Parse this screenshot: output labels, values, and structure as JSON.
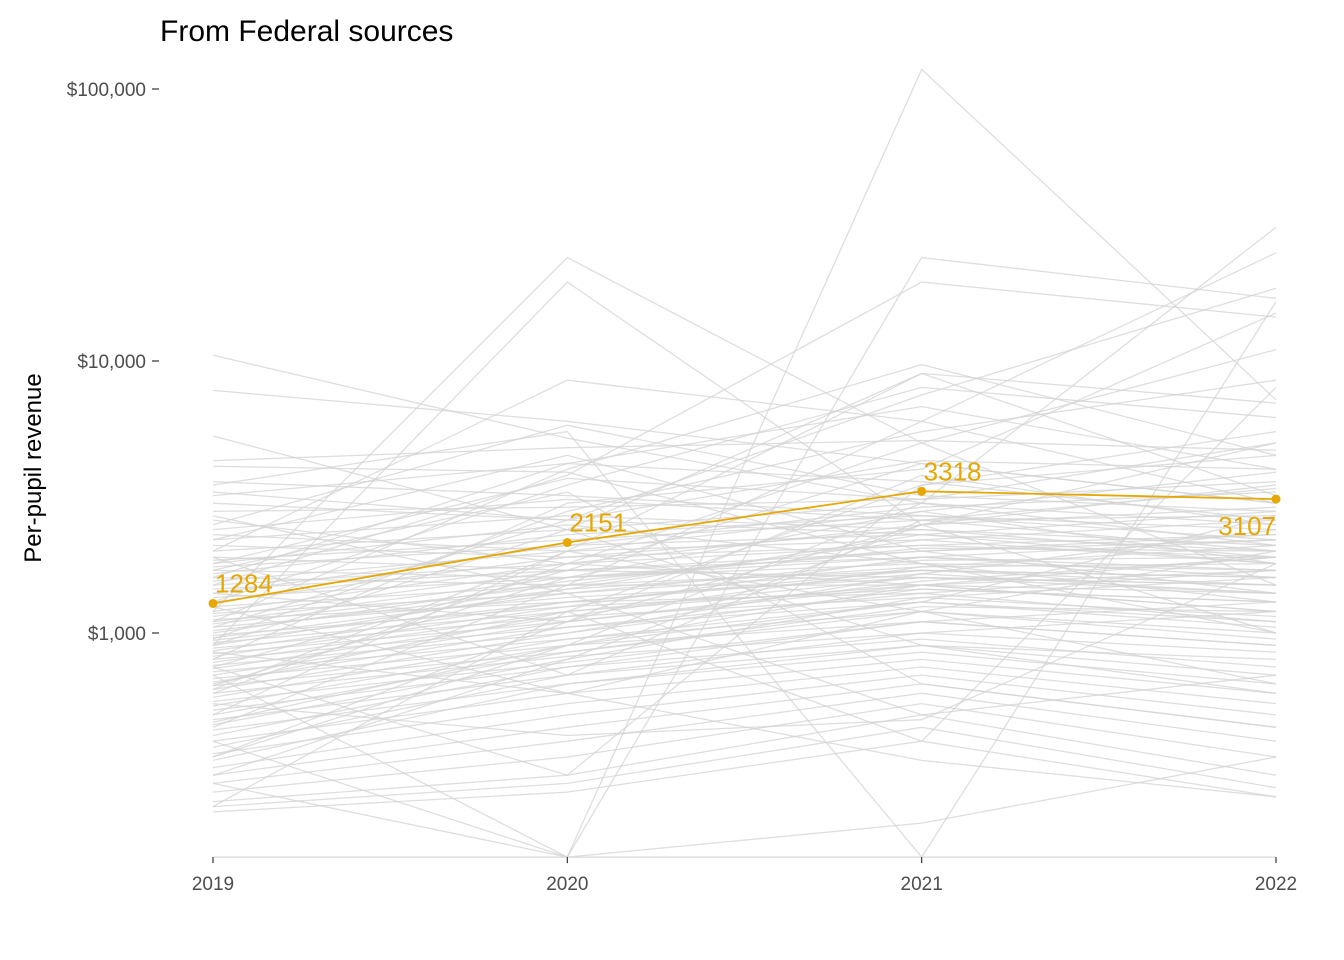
{
  "chart_data": {
    "type": "line",
    "title": "From Federal sources",
    "xlabel": "",
    "ylabel": "Per-pupil revenue",
    "x": [
      "2019",
      "2020",
      "2021",
      "2022"
    ],
    "y_scale": "log10",
    "ylim": [
      150,
      120000
    ],
    "y_ticks": [
      {
        "value": 1000,
        "label": "$1,000"
      },
      {
        "value": 10000,
        "label": "$10,000"
      },
      {
        "value": 100000,
        "label": "$100,000"
      }
    ],
    "grid": false,
    "legend": "none",
    "highlight_color": "#E6A800",
    "background_color": "#D3D3D3",
    "highlight": {
      "values": [
        1284,
        2151,
        3318,
        3107
      ],
      "labels": [
        "1284",
        "2151",
        "3318",
        "3107"
      ]
    },
    "background_series": [
      [
        10500,
        5200,
        3000,
        2100
      ],
      [
        7800,
        6000,
        4200,
        3000
      ],
      [
        5300,
        2400,
        9000,
        3200
      ],
      [
        4300,
        4800,
        5100,
        4700
      ],
      [
        3600,
        3200,
        2700,
        2200
      ],
      [
        3200,
        4200,
        3600,
        2600
      ],
      [
        3000,
        2600,
        2300,
        1800
      ],
      [
        2800,
        2900,
        3100,
        3600
      ],
      [
        2600,
        1800,
        1500,
        1200
      ],
      [
        2400,
        3100,
        2600,
        2000
      ],
      [
        2300,
        2000,
        2800,
        3900
      ],
      [
        2200,
        2700,
        2400,
        1900
      ],
      [
        2100,
        1900,
        2100,
        2300
      ],
      [
        2000,
        2400,
        3000,
        2500
      ],
      [
        1900,
        1700,
        1900,
        1600
      ],
      [
        1850,
        2200,
        2600,
        2700
      ],
      [
        1800,
        2500,
        1800,
        1300
      ],
      [
        1750,
        2100,
        2300,
        2000
      ],
      [
        1700,
        1600,
        2000,
        2200
      ],
      [
        1650,
        2300,
        2700,
        2400
      ],
      [
        1600,
        1500,
        1700,
        1500
      ],
      [
        1550,
        2000,
        2200,
        1800
      ],
      [
        1500,
        1800,
        2500,
        2900
      ],
      [
        1450,
        1700,
        1600,
        1400
      ],
      [
        1400,
        2100,
        2900,
        3300
      ],
      [
        1350,
        1600,
        1800,
        1700
      ],
      [
        1300,
        1900,
        2400,
        2100
      ],
      [
        1250,
        1500,
        1500,
        1200
      ],
      [
        1200,
        1800,
        2100,
        1900
      ],
      [
        1180,
        1400,
        1700,
        1600
      ],
      [
        1150,
        1700,
        2000,
        2300
      ],
      [
        1120,
        1300,
        1400,
        1100
      ],
      [
        1100,
        1600,
        1900,
        1700
      ],
      [
        1080,
        1500,
        2200,
        2600
      ],
      [
        1050,
        1350,
        1600,
        1500
      ],
      [
        1020,
        1450,
        1750,
        1800
      ],
      [
        1000,
        1550,
        2050,
        2000
      ],
      [
        980,
        1250,
        1450,
        1300
      ],
      [
        960,
        1400,
        1850,
        1900
      ],
      [
        940,
        1300,
        1650,
        1400
      ],
      [
        920,
        1200,
        1500,
        1700
      ],
      [
        900,
        1450,
        2300,
        2800
      ],
      [
        880,
        1150,
        1350,
        1150
      ],
      [
        860,
        1300,
        1700,
        1600
      ],
      [
        840,
        1100,
        1550,
        1900
      ],
      [
        820,
        1250,
        1900,
        2200
      ],
      [
        800,
        1050,
        1300,
        1050
      ],
      [
        780,
        1200,
        1600,
        1500
      ],
      [
        760,
        1000,
        1450,
        1300
      ],
      [
        740,
        1150,
        1750,
        2100
      ],
      [
        720,
        950,
        1200,
        950
      ],
      [
        700,
        1100,
        1500,
        1400
      ],
      [
        680,
        900,
        1100,
        900
      ],
      [
        660,
        1050,
        1400,
        1700
      ],
      [
        640,
        850,
        1250,
        1200
      ],
      [
        620,
        1000,
        1650,
        2400
      ],
      [
        600,
        820,
        1000,
        850
      ],
      [
        580,
        950,
        1300,
        1100
      ],
      [
        560,
        780,
        1100,
        1300
      ],
      [
        540,
        900,
        1500,
        1900
      ],
      [
        520,
        750,
        950,
        750
      ],
      [
        500,
        850,
        1200,
        1000
      ],
      [
        480,
        700,
        900,
        700
      ],
      [
        460,
        800,
        1350,
        1600
      ],
      [
        440,
        650,
        850,
        650
      ],
      [
        420,
        750,
        1100,
        900
      ],
      [
        400,
        600,
        800,
        600
      ],
      [
        380,
        700,
        1000,
        1200
      ],
      [
        360,
        550,
        750,
        550
      ],
      [
        340,
        650,
        900,
        800
      ],
      [
        320,
        500,
        700,
        500
      ],
      [
        300,
        450,
        650,
        450
      ],
      [
        280,
        400,
        600,
        400
      ],
      [
        260,
        350,
        550,
        350
      ],
      [
        240,
        300,
        500,
        300
      ],
      [
        230,
        280,
        450,
        270
      ],
      [
        220,
        260,
        400,
        250
      ],
      [
        300,
        800,
        2500,
        5000
      ],
      [
        500,
        2000,
        9000,
        7000
      ],
      [
        800,
        3000,
        4000,
        15000
      ],
      [
        450,
        1500,
        6000,
        25000
      ],
      [
        350,
        900,
        3000,
        31000
      ],
      [
        600,
        1800,
        5000,
        11000
      ],
      [
        1200,
        24000,
        5000,
        1500
      ],
      [
        900,
        19500,
        2500,
        1000
      ],
      [
        700,
        150,
        24000,
        17000
      ],
      [
        1500,
        3800,
        19500,
        14500
      ],
      [
        1100,
        4000,
        9700,
        4500
      ],
      [
        2000,
        8500,
        6000,
        3000
      ],
      [
        400,
        150,
        118000,
        7200
      ],
      [
        3500,
        5500,
        150,
        16500
      ],
      [
        1300,
        3500,
        8000,
        6200
      ],
      [
        950,
        2800,
        5500,
        8500
      ],
      [
        650,
        1200,
        3500,
        5500
      ],
      [
        280,
        150,
        200,
        350
      ],
      [
        230,
        1200,
        400,
        8000
      ],
      [
        1600,
        4200,
        6800,
        4000
      ],
      [
        2500,
        5800,
        3200,
        2800
      ],
      [
        850,
        600,
        340,
        250
      ],
      [
        750,
        300,
        3500,
        4500
      ],
      [
        550,
        420,
        480,
        1800
      ],
      [
        1900,
        700,
        2600,
        3400
      ],
      [
        2700,
        1400,
        500,
        700
      ],
      [
        4100,
        3900,
        1800,
        1000
      ],
      [
        1700,
        3300,
        650,
        450
      ],
      [
        1050,
        2600,
        7500,
        18500
      ],
      [
        620,
        2000,
        1200,
        650
      ],
      [
        1400,
        1100,
        3800,
        2500
      ],
      [
        2200,
        4500,
        2000,
        1400
      ],
      [
        900,
        2400,
        900,
        600
      ],
      [
        750,
        1700,
        4200,
        3000
      ],
      [
        350,
        1100,
        2500,
        3500
      ],
      [
        1250,
        600,
        1200,
        2000
      ],
      [
        3300,
        2600,
        4300,
        4000
      ],
      [
        1800,
        3700,
        3100,
        5000
      ],
      [
        640,
        1600,
        2800,
        1800
      ],
      [
        470,
        900,
        1300,
        2700
      ]
    ]
  }
}
